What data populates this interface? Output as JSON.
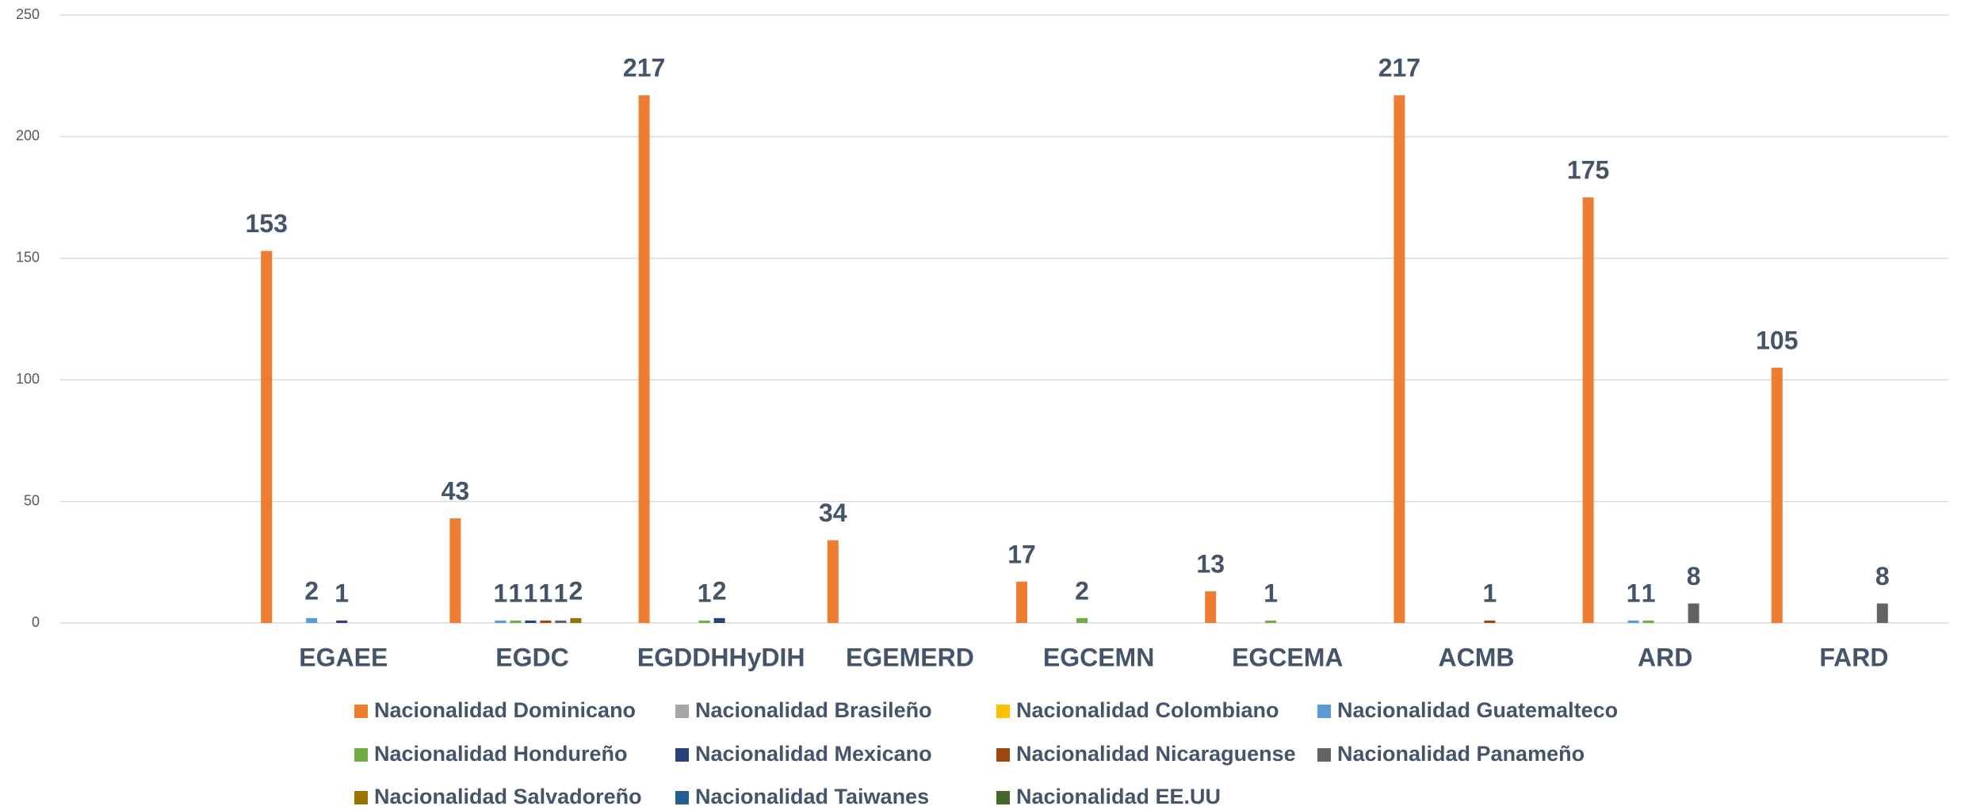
{
  "chart_data": {
    "type": "bar",
    "categories": [
      null,
      "EGAEE",
      "EGDC",
      "EGDDHHyDIH",
      "EGEMERD",
      "EGCEMN",
      "EGCEMA",
      "ACMB",
      "ARD",
      "FARD"
    ],
    "series": [
      {
        "name": "Nacionalidad Dominicano",
        "color": "#ed7d31",
        "values": [
          null,
          153,
          43,
          217,
          34,
          17,
          13,
          217,
          175,
          105
        ]
      },
      {
        "name": "Nacionalidad Brasileño",
        "color": "#a5a5a5",
        "values": [
          null,
          null,
          null,
          null,
          null,
          null,
          null,
          null,
          null,
          null
        ]
      },
      {
        "name": "Nacionalidad Colombiano",
        "color": "#ffc000",
        "values": [
          null,
          null,
          null,
          null,
          null,
          null,
          null,
          null,
          null,
          null
        ]
      },
      {
        "name": "Nacionalidad Guatemalteco",
        "color": "#5b9bd5",
        "values": [
          null,
          2,
          1,
          null,
          null,
          null,
          null,
          null,
          1,
          null
        ]
      },
      {
        "name": "Nacionalidad Hondureño",
        "color": "#70ad47",
        "values": [
          null,
          null,
          1,
          1,
          null,
          2,
          1,
          null,
          1,
          null
        ]
      },
      {
        "name": "Nacionalidad Mexicano",
        "color": "#264478",
        "values": [
          null,
          1,
          1,
          2,
          null,
          null,
          null,
          null,
          null,
          null
        ]
      },
      {
        "name": "Nacionalidad Nicaraguense",
        "color": "#9e480e",
        "values": [
          null,
          null,
          1,
          null,
          null,
          null,
          null,
          1,
          null,
          null
        ]
      },
      {
        "name": "Nacionalidad Panameño",
        "color": "#636363",
        "values": [
          null,
          null,
          1,
          null,
          null,
          null,
          null,
          null,
          8,
          8
        ]
      },
      {
        "name": "Nacionalidad Salvadoreño",
        "color": "#997300",
        "values": [
          null,
          null,
          2,
          null,
          null,
          null,
          null,
          null,
          null,
          null
        ]
      },
      {
        "name": "Nacionalidad Taiwanes",
        "color": "#255e91",
        "values": [
          null,
          null,
          null,
          null,
          null,
          null,
          null,
          null,
          null,
          null
        ]
      },
      {
        "name": "Nacionalidad EE.UU",
        "color": "#43682b",
        "values": [
          null,
          null,
          null,
          null,
          null,
          null,
          null,
          null,
          null,
          null
        ]
      }
    ],
    "ylim": [
      0,
      250
    ],
    "yticks": [
      0,
      50,
      100,
      150,
      200,
      250
    ],
    "grid": true,
    "legend": "bottom"
  }
}
